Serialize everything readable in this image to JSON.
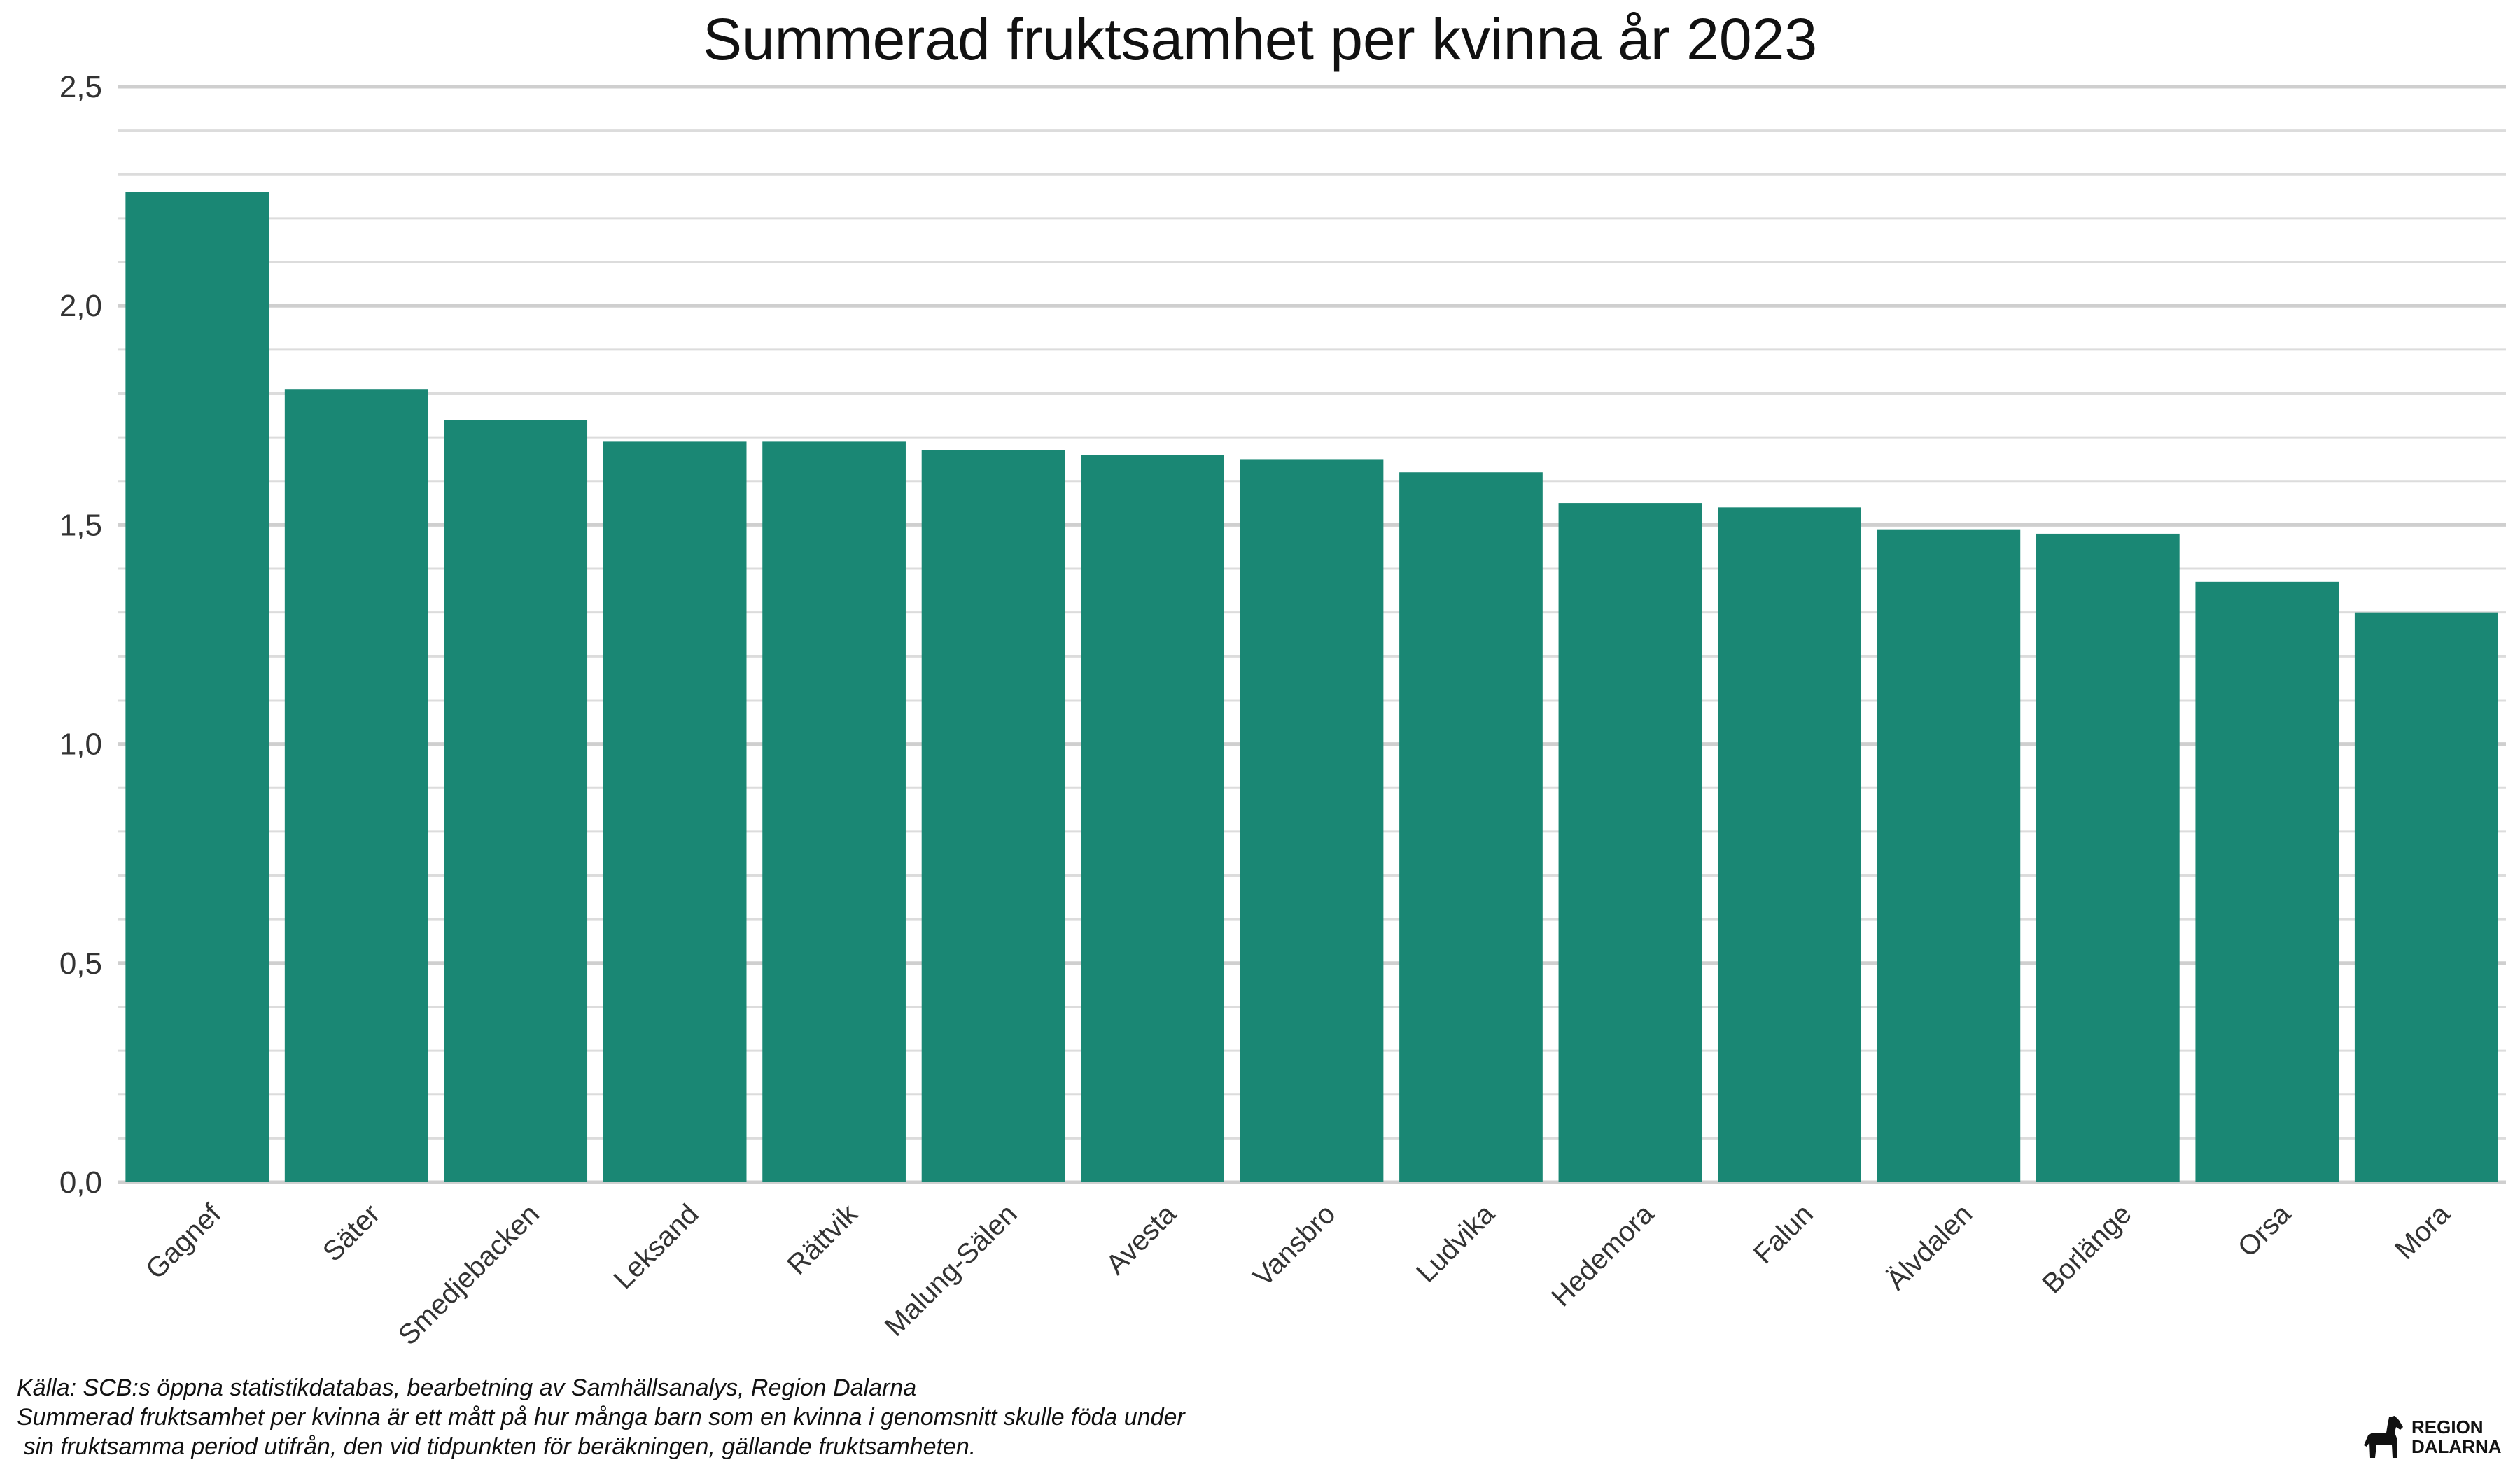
{
  "chart_data": {
    "type": "bar",
    "title": "Summerad fruktsamhet per kvinna år 2023",
    "xlabel": "",
    "ylabel": "",
    "categories": [
      "Gagnef",
      "Säter",
      "Smedjebacken",
      "Leksand",
      "Rättvik",
      "Malung-Sälen",
      "Avesta",
      "Vansbro",
      "Ludvika",
      "Hedemora",
      "Falun",
      "Älvdalen",
      "Borlänge",
      "Orsa",
      "Mora"
    ],
    "values": [
      2.26,
      1.81,
      1.74,
      1.69,
      1.69,
      1.67,
      1.66,
      1.65,
      1.62,
      1.55,
      1.54,
      1.49,
      1.48,
      1.37,
      1.3
    ],
    "ylim": [
      0,
      2.5
    ],
    "yticks": [
      0,
      0.5,
      1.0,
      1.5,
      2.0,
      2.5
    ],
    "ytick_labels": [
      "0,0",
      "0,5",
      "1,0",
      "1,5",
      "2,0",
      "2,5"
    ],
    "minor_step": 0.1,
    "bar_color": "#1a8774",
    "grid": true,
    "legend": "none"
  },
  "captions": {
    "line1": "Källa: SCB:s öppna statistikdatabas, bearbetning av Samhällsanalys, Region Dalarna",
    "line2": "Summerad fruktsamhet per kvinna är ett mått på hur många barn som en kvinna i genomsnitt skulle föda under",
    "line3": " sin fruktsamma period utifrån, den vid tidpunkten för beräkningen, gällande fruktsamheten."
  },
  "logo": {
    "line1": "REGION",
    "line2": "DALARNA",
    "icon": "dala-horse-icon"
  }
}
